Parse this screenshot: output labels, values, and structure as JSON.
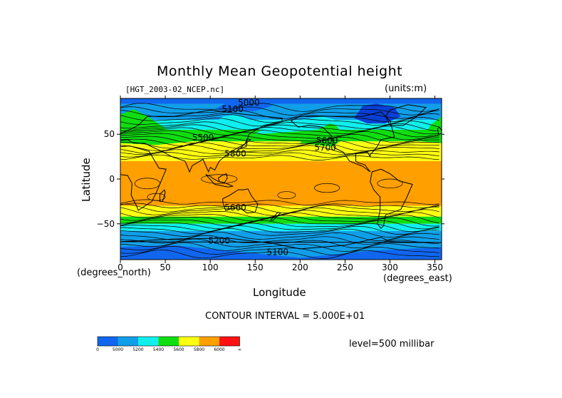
{
  "title": "Monthly Mean Geopotential height",
  "file_label": "[HGT_2003-02_NCEP.nc]",
  "units_label": "(units:m)",
  "contour_interval_label": "CONTOUR INTERVAL = 5.000E+01",
  "level_label": "level=500 millibar",
  "colors": {
    "c0": "#1166ee",
    "c5000": "#119ee8",
    "c5200": "#11eeee",
    "c5400": "#11dd11",
    "c5600": "#ffff11",
    "c5800": "#ff9f00",
    "c6000": "#ff1111",
    "dark_low": "#0a3fd6",
    "coast": "#000000",
    "contour": "#000000"
  },
  "colorbar": {
    "ticks": [
      "0",
      "5000",
      "5200",
      "5400",
      "5600",
      "5800",
      "6000",
      "∞"
    ]
  },
  "chart_data": {
    "type": "heatmap",
    "title": "Monthly Mean Geopotential height",
    "xlabel": "Longitude",
    "ylabel": "Latitude",
    "x_unit": "(degrees_east)",
    "y_unit": "(degrees_north)",
    "xlim": [
      0,
      357.5
    ],
    "ylim": [
      -90,
      90
    ],
    "xticks": [
      0,
      50,
      100,
      150,
      200,
      250,
      300,
      350
    ],
    "yticks": [
      50,
      0,
      -50
    ],
    "contour_interval": 50,
    "level_bins": [
      0,
      5000,
      5200,
      5400,
      5600,
      5800,
      6000
    ],
    "contour_labels": [
      {
        "text": "5000",
        "lon": 143,
        "lat": 82
      },
      {
        "text": "5100",
        "lon": 125,
        "lat": 75
      },
      {
        "text": "5500",
        "lon": 92,
        "lat": 43
      },
      {
        "text": "5600",
        "lon": 230,
        "lat": 40
      },
      {
        "text": "5700",
        "lon": 228,
        "lat": 32
      },
      {
        "text": "5800",
        "lon": 128,
        "lat": 25
      },
      {
        "text": "5600",
        "lon": 128,
        "lat": -35
      },
      {
        "text": "5200",
        "lon": 110,
        "lat": -72
      },
      {
        "text": "5100",
        "lon": 175,
        "lat": -85
      }
    ]
  }
}
